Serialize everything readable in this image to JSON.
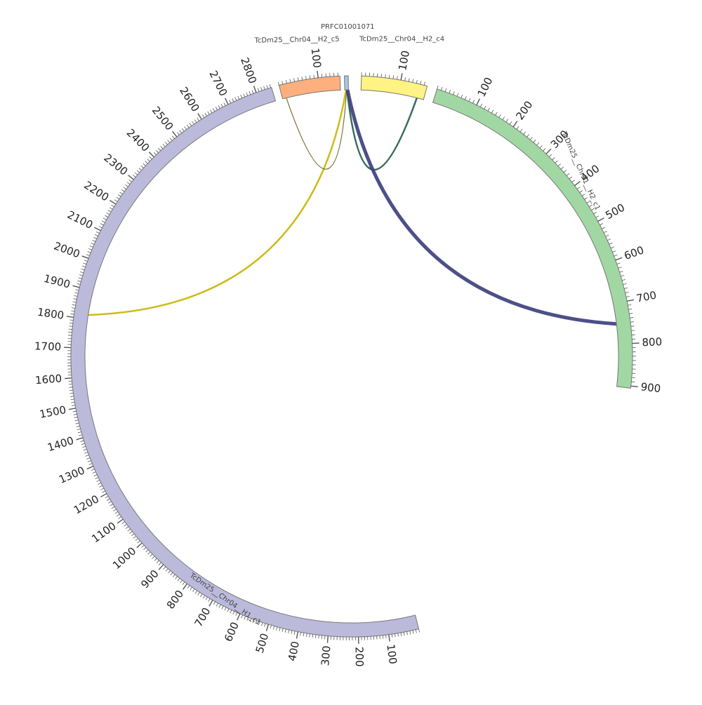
{
  "diagram": {
    "type": "circos",
    "segments": [
      {
        "id": "chr04_h1_c1",
        "name": "TcDm25__Chr04__H1_c1",
        "length": 2853,
        "color": "#bcbadb",
        "ticks": [
          "100",
          "200",
          "300",
          "400",
          "500",
          "600",
          "700",
          "800",
          "900",
          "1000",
          "1100",
          "1200",
          "1300",
          "1400",
          "1500",
          "1600",
          "1700",
          "1800",
          "1900",
          "2000",
          "2100",
          "2200",
          "2300",
          "2400",
          "2500",
          "2600",
          "2700",
          "2800"
        ]
      },
      {
        "id": "chr04_h2_c5",
        "name": "TcDm25__Chr04__H2_c5",
        "length": 155,
        "color": "#fdb07d",
        "ticks": [
          "100"
        ]
      },
      {
        "id": "prfc",
        "name": "PRFC01001071",
        "length": 8,
        "color": "#a6c7df",
        "ticks": []
      },
      {
        "id": "chr04_h2_c4",
        "name": "TcDm25__Chr04__H2_c4",
        "length": 168,
        "color": "#fef383",
        "ticks": [
          "100"
        ]
      },
      {
        "id": "chr31_h2_c1",
        "name": "TcDm25__Chr31__H2_c1",
        "length": 905,
        "color": "#a1d7a3",
        "ticks": [
          "100",
          "200",
          "300",
          "400",
          "500",
          "600",
          "700",
          "800",
          "900"
        ]
      }
    ],
    "links": [
      {
        "from": {
          "segment": "prfc",
          "pos": 3
        },
        "to": {
          "segment": "chr04_h1_c1",
          "pos": 1815
        },
        "color": "#c8b400",
        "width": 2.5
      },
      {
        "from": {
          "segment": "prfc",
          "pos": 4
        },
        "to": {
          "segment": "chr04_h2_c5",
          "pos": 10
        },
        "color": "#6b6415",
        "width": 1.2
      },
      {
        "from": {
          "segment": "prfc",
          "pos": 5
        },
        "to": {
          "segment": "chr04_h2_c4",
          "pos": 150
        },
        "color": "#1f5a4a",
        "width": 2.5
      },
      {
        "from": {
          "segment": "prfc",
          "pos": 6
        },
        "to": {
          "segment": "chr31_h2_c1",
          "pos": 750
        },
        "color": "#3a3d7a",
        "width": 5
      }
    ]
  }
}
